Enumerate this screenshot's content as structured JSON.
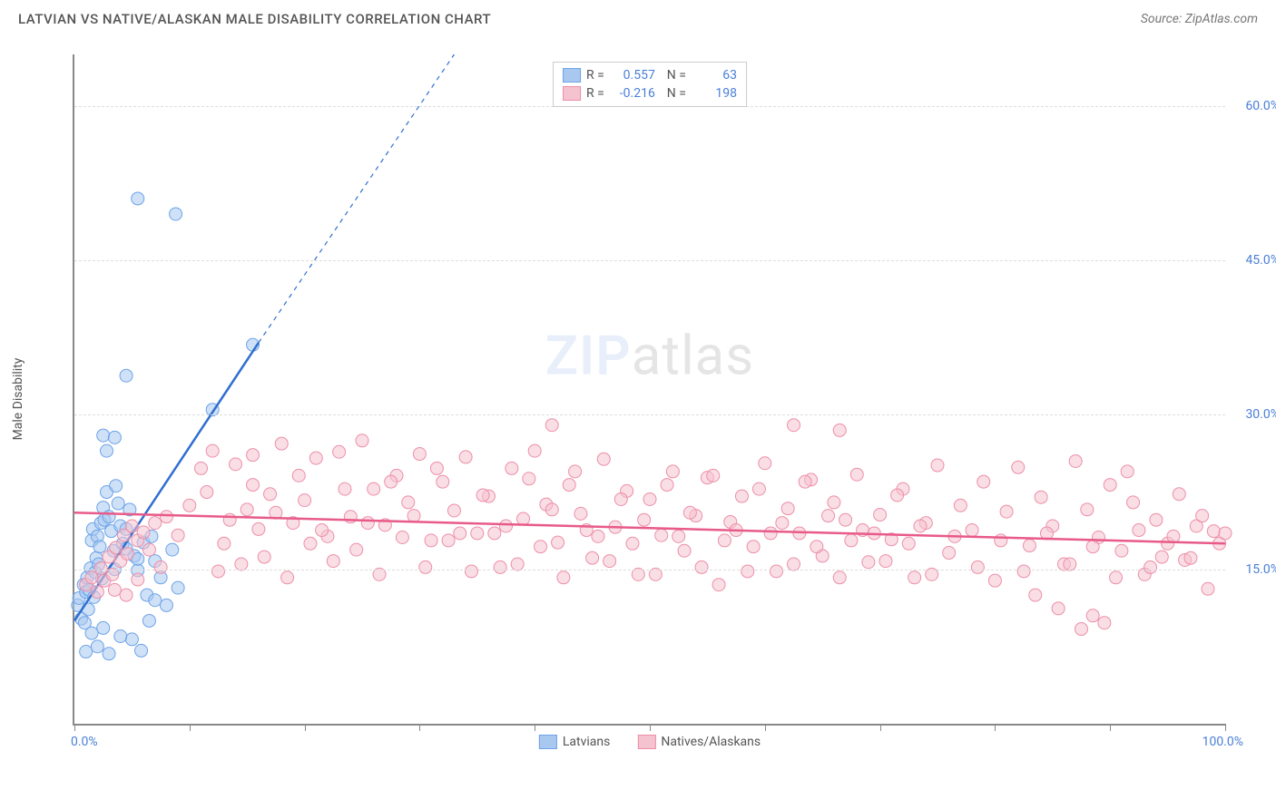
{
  "title": "LATVIAN VS NATIVE/ALASKAN MALE DISABILITY CORRELATION CHART",
  "source": "Source: ZipAtlas.com",
  "ylabel": "Male Disability",
  "watermark": {
    "part1": "ZIP",
    "part2": "atlas"
  },
  "chart": {
    "type": "scatter",
    "xlim": [
      0,
      100
    ],
    "ylim": [
      0,
      65
    ],
    "xaxis": {
      "min_label": "0.0%",
      "max_label": "100.0%",
      "tick_positions": [
        0,
        10,
        20,
        30,
        40,
        50,
        60,
        70,
        80,
        90,
        100
      ]
    },
    "yticks": [
      {
        "value": 15.0,
        "label": "15.0%"
      },
      {
        "value": 30.0,
        "label": "30.0%"
      },
      {
        "value": 45.0,
        "label": "45.0%"
      },
      {
        "value": 60.0,
        "label": "60.0%"
      }
    ],
    "grid_color": "#dddddd",
    "background_color": "#ffffff",
    "series": [
      {
        "id": "latvians",
        "label": "Latvians",
        "marker_fill": "#a8c8f0",
        "marker_stroke": "#6da3e8",
        "marker_radius": 7,
        "marker_opacity": 0.55,
        "trend_color": "#2f6fd0",
        "trend_width": 2.5,
        "trend": {
          "x1": 0,
          "y1": 10,
          "x2": 16,
          "y2": 37
        },
        "trend_dash_ext": {
          "x1": 16,
          "y1": 37,
          "x2": 33,
          "y2": 65
        },
        "R": "0.557",
        "N": "63",
        "points": [
          [
            0.3,
            11.5
          ],
          [
            0.4,
            12.2
          ],
          [
            0.6,
            10.2
          ],
          [
            0.8,
            13.5
          ],
          [
            0.9,
            9.8
          ],
          [
            1.0,
            12.8
          ],
          [
            1.1,
            14.2
          ],
          [
            1.2,
            11.1
          ],
          [
            1.3,
            13.0
          ],
          [
            1.4,
            15.1
          ],
          [
            1.5,
            17.8
          ],
          [
            1.6,
            18.9
          ],
          [
            1.7,
            12.3
          ],
          [
            1.8,
            14.7
          ],
          [
            1.9,
            16.1
          ],
          [
            2.0,
            18.2
          ],
          [
            2.1,
            15.5
          ],
          [
            2.2,
            17.2
          ],
          [
            2.3,
            19.5
          ],
          [
            2.4,
            14.1
          ],
          [
            2.5,
            21.0
          ],
          [
            2.6,
            19.8
          ],
          [
            2.8,
            22.5
          ],
          [
            3.0,
            20.1
          ],
          [
            3.2,
            18.7
          ],
          [
            3.4,
            16.8
          ],
          [
            3.6,
            23.1
          ],
          [
            3.8,
            21.4
          ],
          [
            4.0,
            19.2
          ],
          [
            4.2,
            17.5
          ],
          [
            4.5,
            18.9
          ],
          [
            4.8,
            20.8
          ],
          [
            5.0,
            8.2
          ],
          [
            5.2,
            16.3
          ],
          [
            5.5,
            14.9
          ],
          [
            5.8,
            7.1
          ],
          [
            6.0,
            17.6
          ],
          [
            6.3,
            12.5
          ],
          [
            6.7,
            18.2
          ],
          [
            7.0,
            15.8
          ],
          [
            7.5,
            14.2
          ],
          [
            8.0,
            11.5
          ],
          [
            8.5,
            16.9
          ],
          [
            9.0,
            13.2
          ],
          [
            2.5,
            28.0
          ],
          [
            2.8,
            26.5
          ],
          [
            3.5,
            27.8
          ],
          [
            4.5,
            33.8
          ],
          [
            5.5,
            51.0
          ],
          [
            8.8,
            49.5
          ],
          [
            12.0,
            30.5
          ],
          [
            15.5,
            36.8
          ],
          [
            1.0,
            7.0
          ],
          [
            2.0,
            7.5
          ],
          [
            3.0,
            6.8
          ],
          [
            4.0,
            8.5
          ],
          [
            1.5,
            8.8
          ],
          [
            2.5,
            9.3
          ],
          [
            6.5,
            10.0
          ],
          [
            7.0,
            12.0
          ],
          [
            3.5,
            15.0
          ],
          [
            4.5,
            17.0
          ],
          [
            5.5,
            16.0
          ]
        ]
      },
      {
        "id": "natives",
        "label": "Natives/Alaskans",
        "marker_fill": "#f5c2d0",
        "marker_stroke": "#ec8fa8",
        "marker_radius": 7,
        "marker_opacity": 0.55,
        "trend_color": "#e85a8a",
        "trend_width": 2.5,
        "trend": {
          "x1": 0,
          "y1": 20.5,
          "x2": 100,
          "y2": 17.5
        },
        "R": "-0.216",
        "N": "198",
        "points": [
          [
            1.0,
            13.5
          ],
          [
            1.5,
            14.2
          ],
          [
            2.0,
            12.8
          ],
          [
            2.3,
            15.1
          ],
          [
            2.6,
            13.9
          ],
          [
            3.0,
            16.2
          ],
          [
            3.3,
            14.5
          ],
          [
            3.6,
            17.1
          ],
          [
            4.0,
            15.8
          ],
          [
            4.3,
            18.3
          ],
          [
            4.6,
            16.5
          ],
          [
            5.0,
            19.2
          ],
          [
            5.5,
            17.8
          ],
          [
            6.0,
            18.6
          ],
          [
            6.5,
            16.9
          ],
          [
            7.0,
            19.5
          ],
          [
            8.0,
            20.1
          ],
          [
            9.0,
            18.3
          ],
          [
            10.0,
            21.2
          ],
          [
            11.0,
            24.8
          ],
          [
            12.0,
            26.5
          ],
          [
            13.0,
            17.5
          ],
          [
            14.0,
            25.2
          ],
          [
            15.0,
            20.8
          ],
          [
            15.5,
            26.1
          ],
          [
            16.0,
            18.9
          ],
          [
            17.0,
            22.3
          ],
          [
            18.0,
            27.2
          ],
          [
            19.0,
            19.5
          ],
          [
            20.0,
            21.7
          ],
          [
            21.0,
            25.8
          ],
          [
            22.0,
            18.2
          ],
          [
            23.0,
            26.4
          ],
          [
            24.0,
            20.1
          ],
          [
            25.0,
            27.5
          ],
          [
            26.0,
            22.8
          ],
          [
            27.0,
            19.3
          ],
          [
            28.0,
            24.1
          ],
          [
            29.0,
            21.5
          ],
          [
            30.0,
            26.2
          ],
          [
            31.0,
            17.8
          ],
          [
            32.0,
            23.5
          ],
          [
            33.0,
            20.7
          ],
          [
            34.0,
            25.9
          ],
          [
            35.0,
            18.5
          ],
          [
            36.0,
            22.1
          ],
          [
            37.0,
            15.2
          ],
          [
            38.0,
            24.8
          ],
          [
            39.0,
            19.9
          ],
          [
            40.0,
            26.5
          ],
          [
            41.0,
            21.3
          ],
          [
            41.5,
            29.0
          ],
          [
            42.0,
            17.6
          ],
          [
            43.0,
            23.2
          ],
          [
            44.0,
            20.4
          ],
          [
            45.0,
            16.1
          ],
          [
            46.0,
            25.7
          ],
          [
            47.0,
            19.1
          ],
          [
            48.0,
            22.6
          ],
          [
            49.0,
            14.5
          ],
          [
            50.0,
            21.8
          ],
          [
            51.0,
            18.3
          ],
          [
            52.0,
            24.5
          ],
          [
            53.0,
            16.8
          ],
          [
            54.0,
            20.2
          ],
          [
            55.0,
            23.9
          ],
          [
            56.0,
            13.5
          ],
          [
            57.0,
            19.6
          ],
          [
            58.0,
            22.1
          ],
          [
            59.0,
            17.2
          ],
          [
            60.0,
            25.3
          ],
          [
            61.0,
            14.8
          ],
          [
            62.0,
            20.9
          ],
          [
            62.5,
            29.0
          ],
          [
            63.0,
            18.5
          ],
          [
            64.0,
            23.7
          ],
          [
            65.0,
            16.3
          ],
          [
            66.0,
            21.5
          ],
          [
            66.5,
            28.5
          ],
          [
            67.0,
            19.8
          ],
          [
            68.0,
            24.2
          ],
          [
            69.0,
            15.7
          ],
          [
            70.0,
            20.3
          ],
          [
            71.0,
            17.9
          ],
          [
            72.0,
            22.8
          ],
          [
            73.0,
            14.2
          ],
          [
            74.0,
            19.5
          ],
          [
            75.0,
            25.1
          ],
          [
            76.0,
            16.6
          ],
          [
            77.0,
            21.2
          ],
          [
            78.0,
            18.8
          ],
          [
            79.0,
            23.5
          ],
          [
            80.0,
            13.9
          ],
          [
            81.0,
            20.6
          ],
          [
            82.0,
            24.9
          ],
          [
            83.0,
            17.3
          ],
          [
            84.0,
            22.0
          ],
          [
            85.0,
            19.2
          ],
          [
            86.0,
            15.5
          ],
          [
            87.0,
            25.5
          ],
          [
            87.5,
            9.2
          ],
          [
            88.0,
            20.8
          ],
          [
            88.5,
            10.5
          ],
          [
            89.0,
            18.1
          ],
          [
            89.5,
            9.8
          ],
          [
            90.0,
            23.2
          ],
          [
            91.0,
            16.8
          ],
          [
            91.5,
            24.5
          ],
          [
            92.0,
            21.5
          ],
          [
            93.0,
            14.5
          ],
          [
            93.5,
            15.2
          ],
          [
            94.0,
            19.8
          ],
          [
            94.5,
            16.2
          ],
          [
            95.0,
            17.5
          ],
          [
            95.5,
            18.2
          ],
          [
            96.0,
            22.3
          ],
          [
            96.5,
            15.9
          ],
          [
            97.0,
            16.1
          ],
          [
            97.5,
            19.2
          ],
          [
            98.0,
            20.2
          ],
          [
            98.5,
            13.1
          ],
          [
            99.0,
            18.7
          ],
          [
            99.5,
            17.5
          ],
          [
            100.0,
            18.5
          ],
          [
            12.5,
            14.8
          ],
          [
            14.5,
            15.5
          ],
          [
            16.5,
            16.2
          ],
          [
            18.5,
            14.2
          ],
          [
            20.5,
            17.5
          ],
          [
            22.5,
            15.8
          ],
          [
            24.5,
            16.9
          ],
          [
            26.5,
            14.5
          ],
          [
            28.5,
            18.1
          ],
          [
            30.5,
            15.2
          ],
          [
            32.5,
            17.8
          ],
          [
            34.5,
            14.8
          ],
          [
            36.5,
            18.5
          ],
          [
            38.5,
            15.5
          ],
          [
            40.5,
            17.2
          ],
          [
            42.5,
            14.2
          ],
          [
            44.5,
            18.8
          ],
          [
            46.5,
            15.8
          ],
          [
            48.5,
            17.5
          ],
          [
            50.5,
            14.5
          ],
          [
            52.5,
            18.2
          ],
          [
            54.5,
            15.2
          ],
          [
            56.5,
            17.8
          ],
          [
            58.5,
            14.8
          ],
          [
            60.5,
            18.5
          ],
          [
            62.5,
            15.5
          ],
          [
            64.5,
            17.2
          ],
          [
            66.5,
            14.2
          ],
          [
            68.5,
            18.8
          ],
          [
            70.5,
            15.8
          ],
          [
            72.5,
            17.5
          ],
          [
            74.5,
            14.5
          ],
          [
            76.5,
            18.2
          ],
          [
            78.5,
            15.2
          ],
          [
            80.5,
            17.8
          ],
          [
            82.5,
            14.8
          ],
          [
            84.5,
            18.5
          ],
          [
            86.5,
            15.5
          ],
          [
            88.5,
            17.2
          ],
          [
            90.5,
            14.2
          ],
          [
            92.5,
            18.8
          ],
          [
            11.5,
            22.5
          ],
          [
            13.5,
            19.8
          ],
          [
            15.5,
            23.2
          ],
          [
            17.5,
            20.5
          ],
          [
            19.5,
            24.1
          ],
          [
            21.5,
            18.8
          ],
          [
            23.5,
            22.8
          ],
          [
            25.5,
            19.5
          ],
          [
            27.5,
            23.5
          ],
          [
            29.5,
            20.2
          ],
          [
            31.5,
            24.8
          ],
          [
            33.5,
            18.5
          ],
          [
            35.5,
            22.2
          ],
          [
            37.5,
            19.2
          ],
          [
            39.5,
            23.8
          ],
          [
            41.5,
            20.8
          ],
          [
            43.5,
            24.5
          ],
          [
            45.5,
            18.2
          ],
          [
            47.5,
            21.8
          ],
          [
            49.5,
            19.8
          ],
          [
            51.5,
            23.2
          ],
          [
            53.5,
            20.5
          ],
          [
            55.5,
            24.1
          ],
          [
            57.5,
            18.8
          ],
          [
            59.5,
            22.8
          ],
          [
            61.5,
            19.5
          ],
          [
            63.5,
            23.5
          ],
          [
            65.5,
            20.2
          ],
          [
            67.5,
            17.8
          ],
          [
            69.5,
            18.5
          ],
          [
            71.5,
            22.2
          ],
          [
            73.5,
            19.2
          ],
          [
            83.5,
            12.5
          ],
          [
            85.5,
            11.2
          ],
          [
            3.5,
            13.0
          ],
          [
            4.5,
            12.5
          ],
          [
            5.5,
            14.0
          ],
          [
            7.5,
            15.2
          ]
        ]
      }
    ]
  }
}
